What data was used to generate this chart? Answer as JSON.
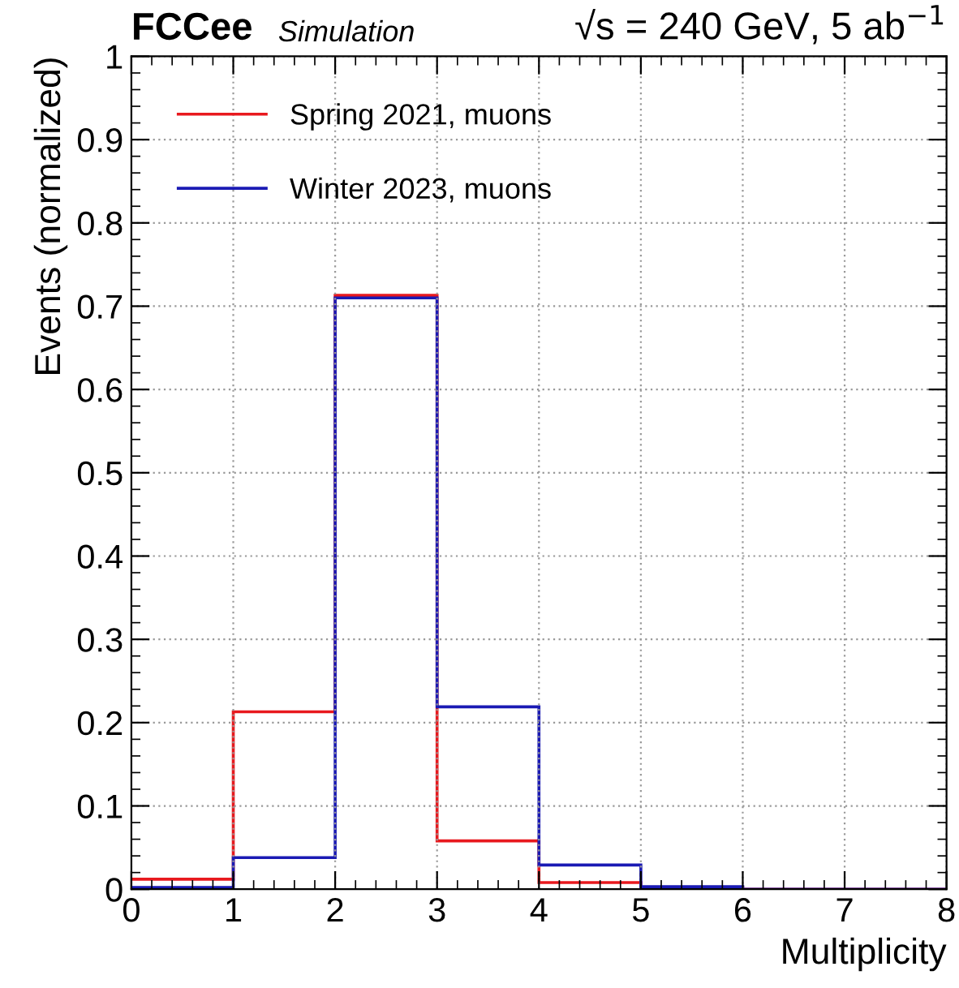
{
  "chart_data": {
    "type": "histogram",
    "title": "FCCee",
    "subtitle": "Simulation",
    "annotations": [
      "√s = 240 GeV, 5 ab$^{−1}$"
    ],
    "xlabel": "Multiplicity",
    "ylabel": "Events (normalized)",
    "bins": [
      0,
      1,
      2,
      3,
      4,
      5,
      6,
      7,
      8
    ],
    "series": [
      {
        "name": "Spring 2021, muons",
        "color": "#e8191e",
        "values": [
          0.012,
          0.213,
          0.713,
          0.058,
          0.008,
          0.002,
          0,
          0
        ]
      },
      {
        "name": "Winter 2023, muons",
        "color": "#1a1ab4",
        "values": [
          0.002,
          0.038,
          0.71,
          0.219,
          0.029,
          0.003,
          0,
          0
        ]
      }
    ],
    "xlim": [
      0,
      8
    ],
    "xticks": [
      0,
      1,
      2,
      3,
      4,
      5,
      6,
      7,
      8
    ],
    "ylim": [
      0,
      1
    ],
    "yticks": [
      0,
      0.1,
      0.2,
      0.3,
      0.4,
      0.5,
      0.6,
      0.7,
      0.8,
      0.9,
      1
    ],
    "grid": true,
    "legend": "top left"
  }
}
